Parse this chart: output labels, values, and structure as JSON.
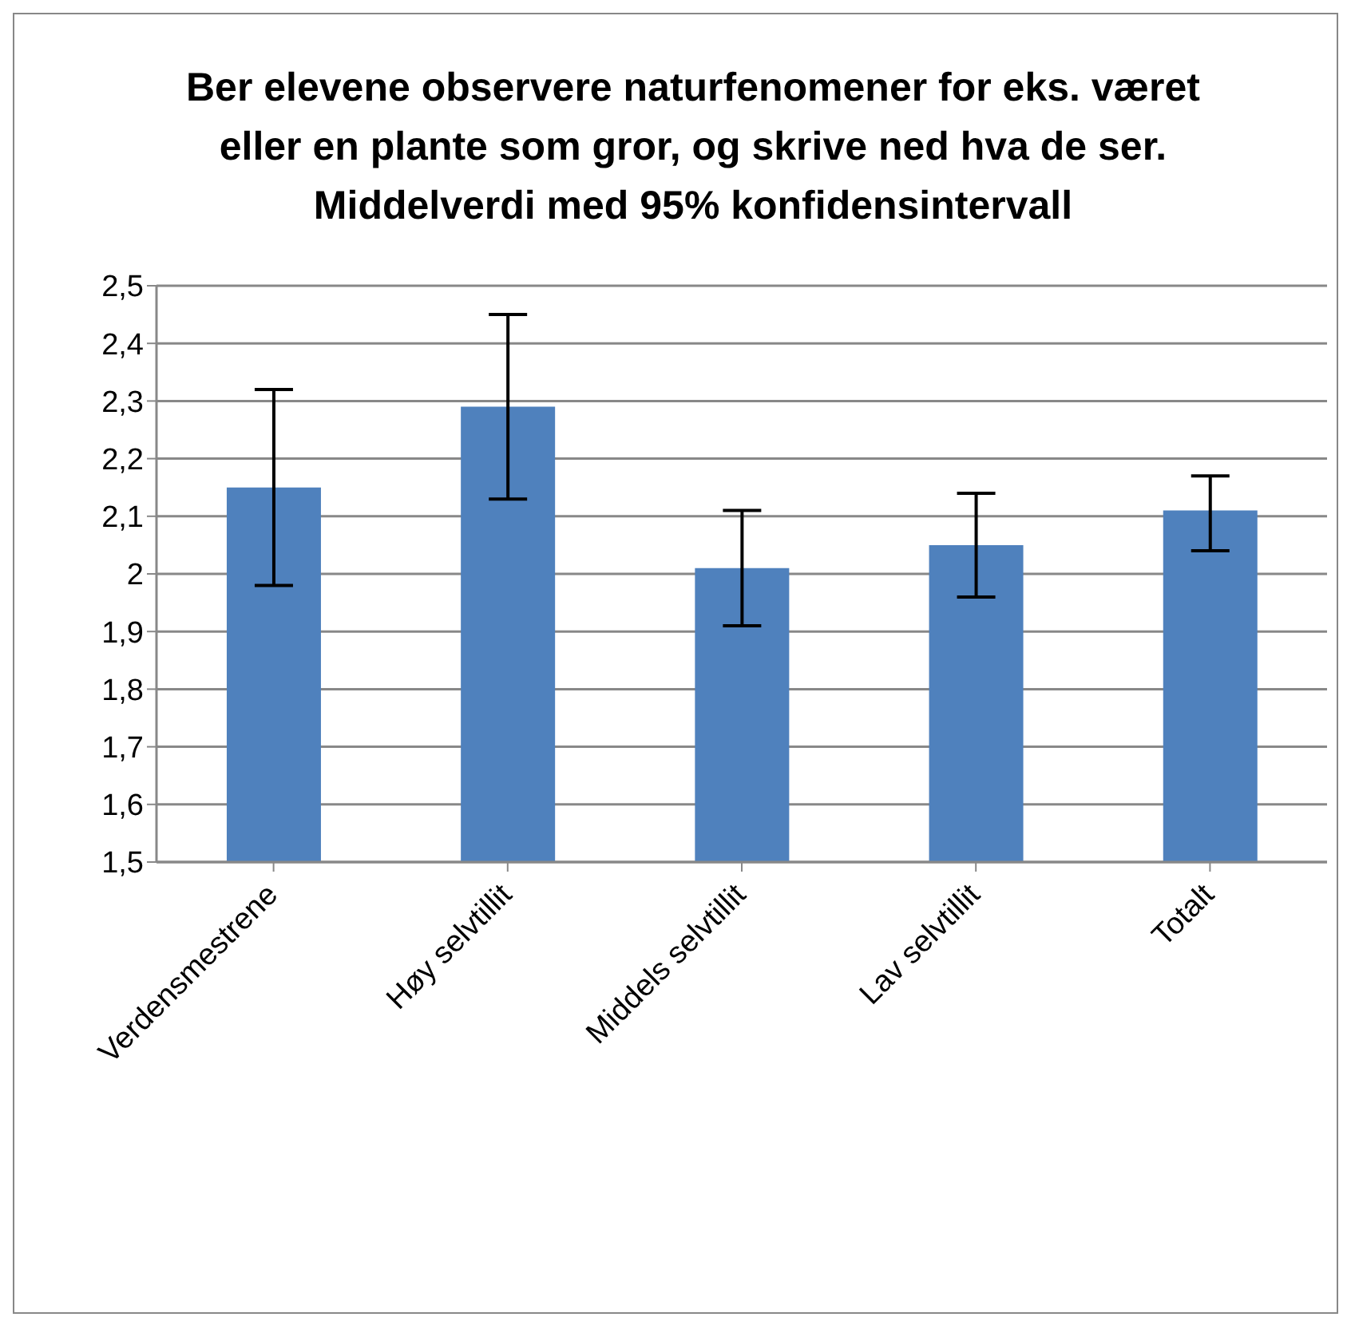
{
  "chart_data": {
    "type": "bar",
    "title": "Ber elevene observere naturfenomener for eks. været eller en plante som gror, og skrive ned hva de ser.\nMiddelverdi med 95% konfidensintervall",
    "categories": [
      "Verdensmestrene",
      "Høy selvtillit",
      "Middels selvtillit",
      "Lav selvtillit",
      "Totalt"
    ],
    "values": [
      2.15,
      2.29,
      2.01,
      2.05,
      2.11
    ],
    "errors": [
      [
        1.98,
        2.32
      ],
      [
        2.13,
        2.45
      ],
      [
        1.91,
        2.11
      ],
      [
        1.96,
        2.14
      ],
      [
        2.04,
        2.17
      ]
    ],
    "color": "#4f81bd",
    "ylim": [
      1.5,
      2.5
    ],
    "yticks": [
      {
        "value": 1.5,
        "label": "1,5"
      },
      {
        "value": 1.6,
        "label": "1,6"
      },
      {
        "value": 1.7,
        "label": "1,7"
      },
      {
        "value": 1.8,
        "label": "1,8"
      },
      {
        "value": 1.9,
        "label": "1,9"
      },
      2,
      {
        "value": 2.1,
        "label": "2,1"
      },
      {
        "value": 2.2,
        "label": "2,2"
      },
      {
        "value": 2.3,
        "label": "2,3"
      },
      {
        "value": 2.4,
        "label": "2,4"
      },
      {
        "value": 2.5,
        "label": "2,5"
      }
    ],
    "grid": "y",
    "legend": false
  }
}
